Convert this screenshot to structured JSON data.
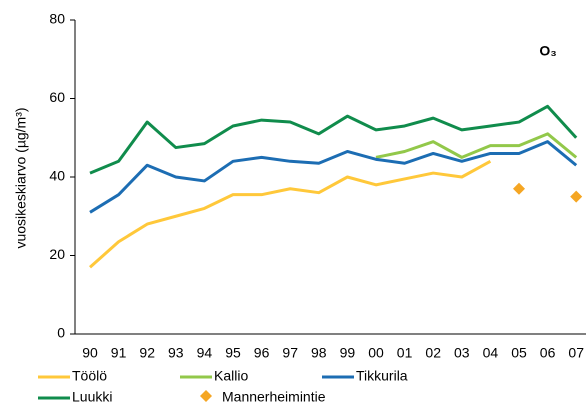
{
  "chart_data": {
    "type": "line",
    "y_label": "vuosikeskiarvo (µg/m³)",
    "annotation": "O₃",
    "categories": [
      "90",
      "91",
      "92",
      "93",
      "94",
      "95",
      "96",
      "97",
      "98",
      "99",
      "00",
      "01",
      "02",
      "03",
      "04",
      "05",
      "06",
      "07"
    ],
    "ylim": [
      0,
      80
    ],
    "yticks": [
      0,
      20,
      40,
      60,
      80
    ],
    "grid": false,
    "series": [
      {
        "name": "Töölö",
        "color": "#ffc83a",
        "values": [
          17,
          23.5,
          28,
          30,
          32,
          35.5,
          35.5,
          37,
          36,
          40,
          38,
          39.5,
          41,
          40,
          44,
          null,
          null,
          null
        ]
      },
      {
        "name": "Kallio",
        "color": "#92c84a",
        "values": [
          null,
          null,
          null,
          null,
          null,
          null,
          null,
          null,
          null,
          null,
          45,
          46.5,
          49,
          45,
          48,
          48,
          51,
          45
        ]
      },
      {
        "name": "Tikkurila",
        "color": "#1c6db3",
        "values": [
          31,
          35.5,
          43,
          40,
          39,
          44,
          45,
          44,
          43.5,
          46.5,
          44.5,
          43.5,
          46,
          44,
          46,
          46,
          49,
          43
        ]
      },
      {
        "name": "Luukki",
        "color": "#108c4c",
        "values": [
          41,
          44,
          54,
          47.5,
          48.5,
          53,
          54.5,
          54,
          51,
          55.5,
          52,
          53,
          55,
          52,
          53,
          54,
          58,
          50
        ]
      },
      {
        "name": "Mannerheimintie",
        "color": "#f5a623",
        "marker": "diamond",
        "values": [
          null,
          null,
          null,
          null,
          null,
          null,
          null,
          null,
          null,
          null,
          null,
          null,
          null,
          null,
          null,
          37,
          null,
          35
        ]
      }
    ]
  }
}
